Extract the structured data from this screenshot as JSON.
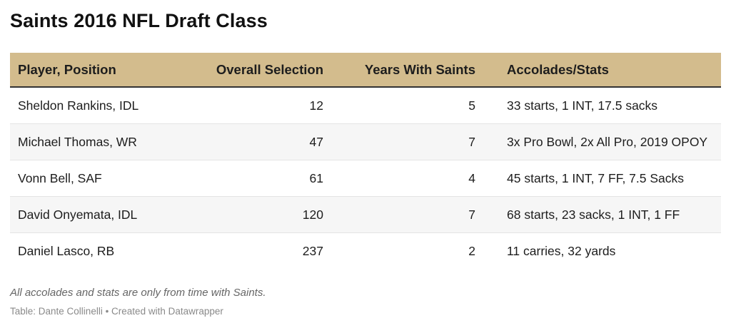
{
  "chart_data": {
    "type": "table",
    "title": "Saints 2016 NFL Draft Class",
    "columns": [
      "Player, Position",
      "Overall Selection",
      "Years With Saints",
      "Accolades/Stats"
    ],
    "rows": [
      [
        "Sheldon Rankins, IDL",
        "12",
        "5",
        "33 starts, 1 INT, 17.5 sacks"
      ],
      [
        "Michael Thomas, WR",
        "47",
        "7",
        "3x Pro Bowl, 2x All Pro, 2019 OPOY"
      ],
      [
        "Vonn Bell, SAF",
        "61",
        "4",
        "45 starts, 1 INT, 7 FF, 7.5 Sacks"
      ],
      [
        "David Onyemata, IDL",
        "120",
        "7",
        "68 starts, 23 sacks, 1 INT, 1 FF"
      ],
      [
        "Daniel Lasco, RB",
        "237",
        "2",
        "11 carries, 32 yards"
      ]
    ],
    "notes": "All accolades and stats are only from time with Saints.",
    "source": "Table: Dante Collinelli • Created with Datawrapper",
    "header_color": "#d3bc8d",
    "stripe_color": "#f6f6f6"
  }
}
